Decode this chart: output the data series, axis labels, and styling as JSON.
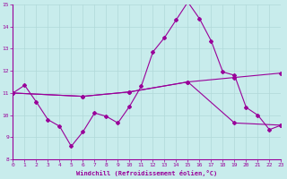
{
  "xlabel": "Windchill (Refroidissement éolien,°C)",
  "xlim": [
    0,
    23
  ],
  "ylim": [
    8,
    15
  ],
  "yticks": [
    8,
    9,
    10,
    11,
    12,
    13,
    14,
    15
  ],
  "xticks": [
    0,
    1,
    2,
    3,
    4,
    5,
    6,
    7,
    8,
    9,
    10,
    11,
    12,
    13,
    14,
    15,
    16,
    17,
    18,
    19,
    20,
    21,
    22,
    23
  ],
  "background_color": "#c8ecec",
  "grid_color": "#b0d8d8",
  "line_color": "#990099",
  "line1_x": [
    0,
    1,
    2,
    3,
    4,
    5,
    6,
    7,
    8,
    9,
    10,
    11,
    12,
    13,
    14,
    15,
    16,
    17,
    18,
    19,
    20,
    21,
    22,
    23
  ],
  "line1_y": [
    11.0,
    11.35,
    10.6,
    9.8,
    9.5,
    8.6,
    9.25,
    10.1,
    9.95,
    9.65,
    10.4,
    11.3,
    12.85,
    13.5,
    14.3,
    15.1,
    14.35,
    13.35,
    11.95,
    11.8,
    10.35,
    10.0,
    9.35,
    9.55
  ],
  "line2_x": [
    0,
    6,
    10,
    15,
    19,
    23
  ],
  "line2_y": [
    11.0,
    10.85,
    11.05,
    11.5,
    11.7,
    11.9
  ],
  "line3_x": [
    0,
    6,
    10,
    15,
    19,
    23
  ],
  "line3_y": [
    11.0,
    10.85,
    11.05,
    11.5,
    9.65,
    9.55
  ]
}
